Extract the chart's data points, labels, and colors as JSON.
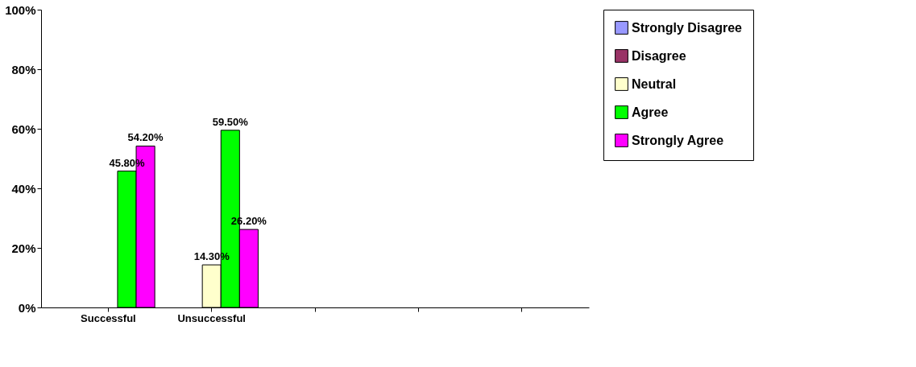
{
  "chart_data": {
    "type": "bar",
    "categories": [
      "Successful",
      "Unsuccessful",
      null,
      null,
      null
    ],
    "series": [
      {
        "name": "Strongly Disagree",
        "color": "#9999ff",
        "values": [
          null,
          null,
          null,
          null,
          null
        ]
      },
      {
        "name": "Disagree",
        "color": "#993366",
        "values": [
          null,
          null,
          null,
          null,
          null
        ]
      },
      {
        "name": "Neutral",
        "color": "#ffffcc",
        "values": [
          null,
          14.3,
          null,
          null,
          null
        ],
        "value_labels": [
          null,
          "14.30%",
          null,
          null,
          null
        ]
      },
      {
        "name": "Agree",
        "color": "#00ff00",
        "values": [
          45.8,
          59.5,
          null,
          null,
          null
        ],
        "value_labels": [
          "45.80%",
          "59.50%",
          null,
          null,
          null
        ]
      },
      {
        "name": "Strongly Agree",
        "color": "#ff00ff",
        "values": [
          54.2,
          26.2,
          null,
          null,
          null
        ],
        "value_labels": [
          "54.20%",
          "26.20%",
          null,
          null,
          null
        ]
      }
    ],
    "ylim": [
      0,
      100
    ],
    "yticks": [
      {
        "value": 0,
        "label": "0%"
      },
      {
        "value": 20,
        "label": "20%"
      },
      {
        "value": 40,
        "label": "40%"
      },
      {
        "value": 60,
        "label": "60%"
      },
      {
        "value": 80,
        "label": "80%"
      },
      {
        "value": 100,
        "label": "100%"
      }
    ],
    "legend": "right"
  }
}
